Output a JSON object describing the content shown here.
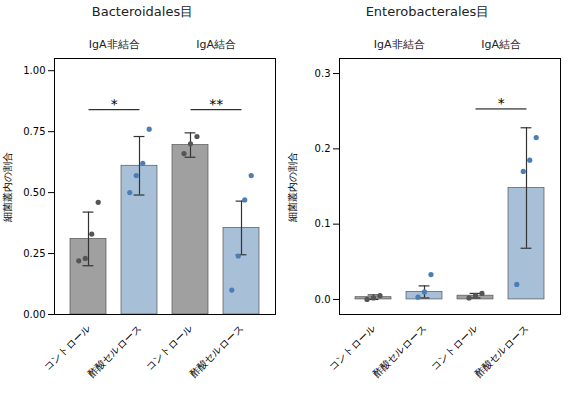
{
  "chart_data": [
    {
      "type": "bar",
      "title": "Bacteroidales目",
      "ylabel": "細菌叢内の割合",
      "group_labels": [
        "IgA非結合",
        "IgA結合"
      ],
      "categories": [
        "コントロール",
        "酢酸セルロース",
        "コントロール",
        "酢酸セルロース"
      ],
      "values": [
        0.31,
        0.61,
        0.695,
        0.355
      ],
      "errors": [
        0.11,
        0.12,
        0.05,
        0.11
      ],
      "colors": [
        "#a0a0a0",
        "#a8bfd8",
        "#a0a0a0",
        "#a8bfd8"
      ],
      "edge_color": "#555555",
      "points": [
        [
          0.22,
          0.23,
          0.33,
          0.46
        ],
        [
          0.5,
          0.57,
          0.62,
          0.76
        ],
        [
          0.66,
          0.7,
          0.73
        ],
        [
          0.1,
          0.24,
          0.47,
          0.57
        ]
      ],
      "point_colors": [
        "#555555",
        "#4a7eb5",
        "#555555",
        "#4a7eb5"
      ],
      "annotations": [
        {
          "text": "*",
          "between": [
            0,
            1
          ],
          "y": 0.84
        },
        {
          "text": "**",
          "between": [
            2,
            3
          ],
          "y": 0.84
        }
      ],
      "ylim": [
        0,
        1.05
      ],
      "yticks": [
        {
          "value": 0.0,
          "label": "0.00"
        },
        0.25,
        {
          "value": 0.5,
          "label": "0.50"
        },
        0.75,
        {
          "value": 1.0,
          "label": "1.00"
        }
      ],
      "grid": false
    },
    {
      "type": "bar",
      "title": "Enterobacterales目",
      "ylabel": "細菌叢内の割合",
      "group_labels": [
        "IgA非結合",
        "IgA結合"
      ],
      "categories": [
        "コントロール",
        "酢酸セルロース",
        "コントロール",
        "酢酸セルロース"
      ],
      "values": [
        0.003,
        0.01,
        0.005,
        0.148
      ],
      "errors": [
        0.003,
        0.008,
        0.003,
        0.08
      ],
      "colors": [
        "#a0a0a0",
        "#a8bfd8",
        "#a0a0a0",
        "#a8bfd8"
      ],
      "edge_color": "#555555",
      "points": [
        [
          0.0,
          0.002,
          0.005
        ],
        [
          0.003,
          0.01,
          0.033
        ],
        [
          0.002,
          0.005,
          0.008
        ],
        [
          0.02,
          0.17,
          0.185,
          0.215
        ]
      ],
      "point_colors": [
        "#555555",
        "#4a7eb5",
        "#555555",
        "#4a7eb5"
      ],
      "annotations": [
        {
          "text": "*",
          "between": [
            2,
            3
          ],
          "y": 0.253
        }
      ],
      "ylim": [
        -0.02,
        0.32
      ],
      "yticks": [
        {
          "value": 0.0,
          "label": "0.0"
        },
        0.1,
        0.2,
        0.3
      ],
      "grid": false
    }
  ]
}
